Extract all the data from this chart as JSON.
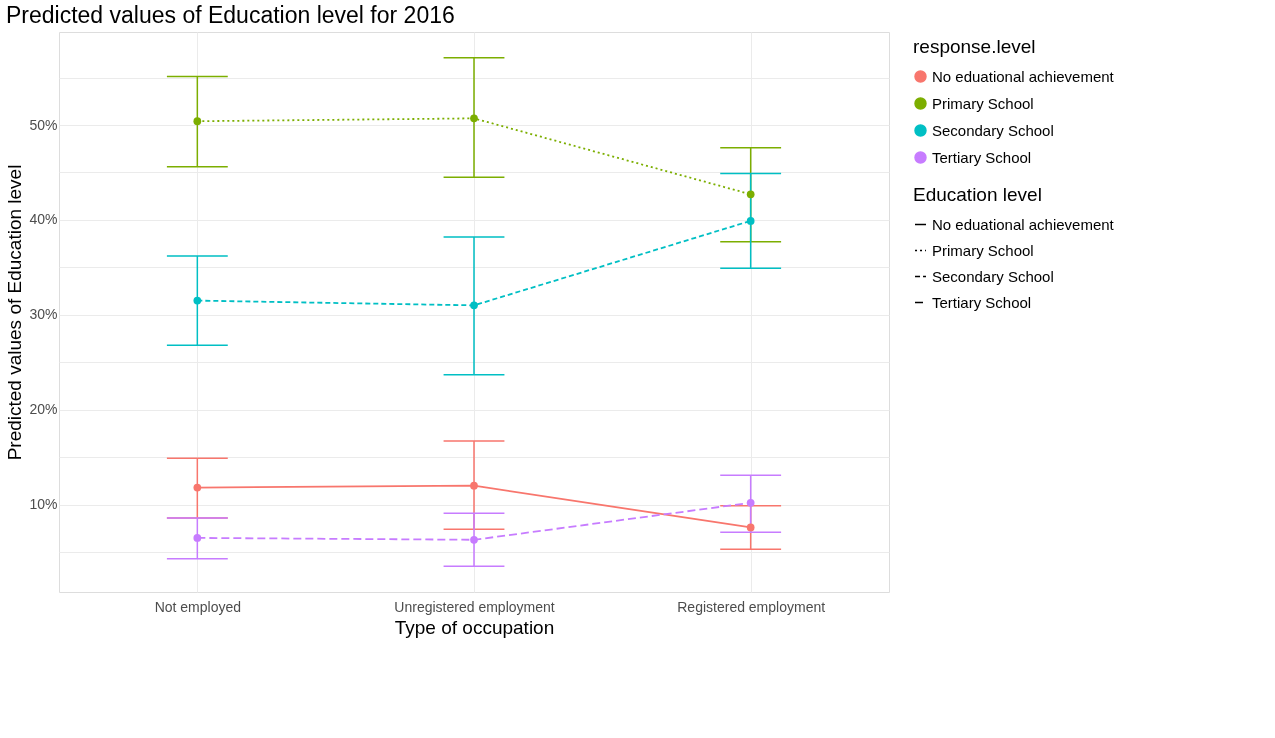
{
  "chart_data": {
    "type": "line",
    "title": "Predicted values of Education level for 2016",
    "xlabel": "Type of occupation",
    "ylabel": "Predicted values of Education level",
    "legend_title": [
      "response.level",
      "Education level"
    ],
    "categories": [
      "Not employed",
      "Unregistered employment",
      "Registered employment"
    ],
    "series": [
      {
        "name": "No eduational achievement",
        "color": "#f8766d",
        "line_style": "solid",
        "values": [
          11.8,
          12.0,
          7.6
        ],
        "errors": [
          [
            8.6,
            14.9
          ],
          [
            7.4,
            16.7
          ],
          [
            5.3,
            9.9
          ]
        ]
      },
      {
        "name": "Primary School",
        "color": "#7cae00",
        "line_style": "dotted",
        "values": [
          50.4,
          50.7,
          42.7
        ],
        "errors": [
          [
            45.6,
            55.1
          ],
          [
            44.5,
            57.1
          ],
          [
            37.7,
            47.6
          ]
        ]
      },
      {
        "name": "Secondary School",
        "color": "#00bfc4",
        "line_style": "dashed",
        "values": [
          31.5,
          31.0,
          39.9
        ],
        "errors": [
          [
            26.8,
            36.2
          ],
          [
            23.7,
            38.2
          ],
          [
            34.9,
            44.9
          ]
        ]
      },
      {
        "name": "Tertiary School",
        "color": "#c77cff",
        "line_style": "longdash",
        "values": [
          6.5,
          6.3,
          10.2
        ],
        "errors": [
          [
            4.3,
            8.6
          ],
          [
            3.5,
            9.1
          ],
          [
            7.1,
            13.1
          ]
        ]
      }
    ],
    "marker": "circle",
    "grid": true,
    "legend": "right",
    "ylim": [
      0.8,
      59.8
    ],
    "yticks": [
      {
        "value": 5,
        "label": null
      },
      {
        "value": 10,
        "label": "10%"
      },
      {
        "value": 15,
        "label": null
      },
      {
        "value": 20,
        "label": "20%"
      },
      {
        "value": 25,
        "label": null
      },
      {
        "value": 30,
        "label": "30%"
      },
      {
        "value": 35,
        "label": null
      },
      {
        "value": 40,
        "label": "40%"
      },
      {
        "value": 45,
        "label": null
      },
      {
        "value": 50,
        "label": "50%"
      },
      {
        "value": 55,
        "label": null
      }
    ]
  }
}
